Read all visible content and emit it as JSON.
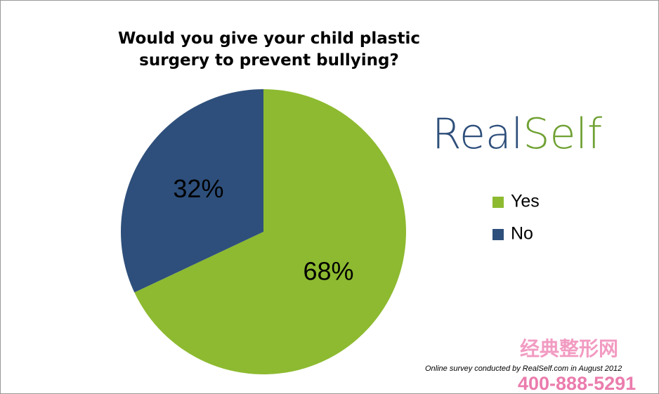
{
  "chart_data": {
    "type": "pie",
    "title": "Would you give your child plastic surgery to prevent bullying?",
    "categories": [
      "Yes",
      "No"
    ],
    "values": [
      68,
      32
    ],
    "value_labels": [
      "68%",
      "32%"
    ],
    "colors": [
      "#8dba30",
      "#2e4f7b"
    ],
    "legend": "right",
    "logo": [
      "Real",
      "Self"
    ],
    "note": "Online survey conducted by RealSelf.com in August 2012",
    "watermark": [
      "经典整形网",
      "400-888-5291"
    ]
  }
}
